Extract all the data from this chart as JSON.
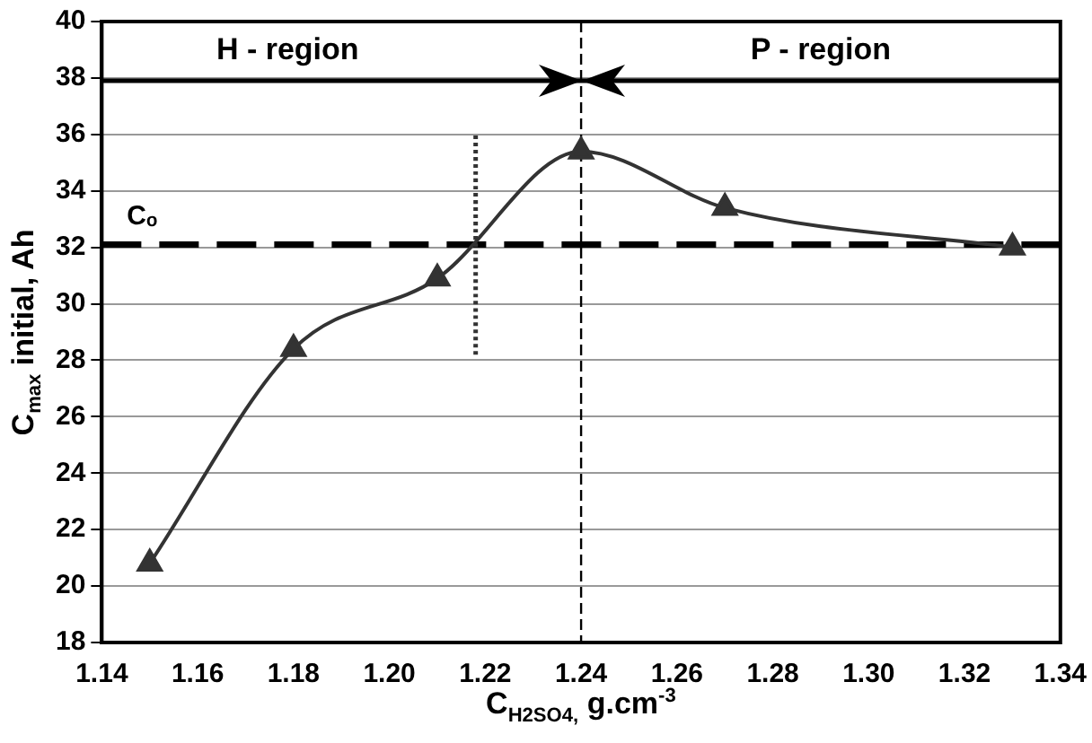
{
  "chart_data": {
    "type": "line",
    "xlabel": "C$_{H2SO4,}$ g.cm$^{-3}$",
    "ylabel": "C$_{max}$ initial, Ah",
    "series": [
      {
        "x": [
          1.15,
          1.18,
          1.21,
          1.24,
          1.27,
          1.33
        ],
        "values": [
          20.8,
          28.4,
          30.9,
          35.4,
          33.4,
          32.0
        ],
        "color": "#333333",
        "marker": "triangle",
        "line_style": "solid"
      },
      {
        "x": [
          1.218,
          1.218
        ],
        "values": [
          28.2,
          36
        ],
        "color": "#333333",
        "marker": "none",
        "line_style": "dotted"
      }
    ],
    "xlim": [
      1.14,
      1.34
    ],
    "xticks": [
      {
        "value": 1.14,
        "label": "1.14"
      },
      {
        "value": 1.16,
        "label": "1.16"
      },
      {
        "value": 1.18,
        "label": "1.18"
      },
      {
        "value": 1.2,
        "label": "1.20"
      },
      {
        "value": 1.22,
        "label": "1.22"
      },
      {
        "value": 1.24,
        "label": "1.24"
      },
      {
        "value": 1.26,
        "label": "1.26"
      },
      {
        "value": 1.28,
        "label": "1.28"
      },
      {
        "value": 1.3,
        "label": "1.30"
      },
      {
        "value": 1.32,
        "label": "1.32"
      },
      {
        "value": 1.34,
        "label": "1.34"
      }
    ],
    "ylim": [
      18,
      40
    ],
    "yticks": [
      18,
      20,
      22,
      24,
      26,
      28,
      30,
      32,
      34,
      36,
      38,
      40
    ],
    "ref_lines": [
      {
        "axis": "y",
        "value": 32.1,
        "label": "Cₒ",
        "line_style": "dashed",
        "color": "#000000"
      },
      {
        "axis": "y",
        "value": 37.9,
        "label": null,
        "line_style": "solid",
        "color": "#000000"
      },
      {
        "axis": "x",
        "value": 1.24,
        "label": null,
        "line_style": "dashed",
        "color": "#000000"
      }
    ],
    "annotations": [
      "H - region",
      "P - region"
    ],
    "grid": "y",
    "legend": false
  }
}
